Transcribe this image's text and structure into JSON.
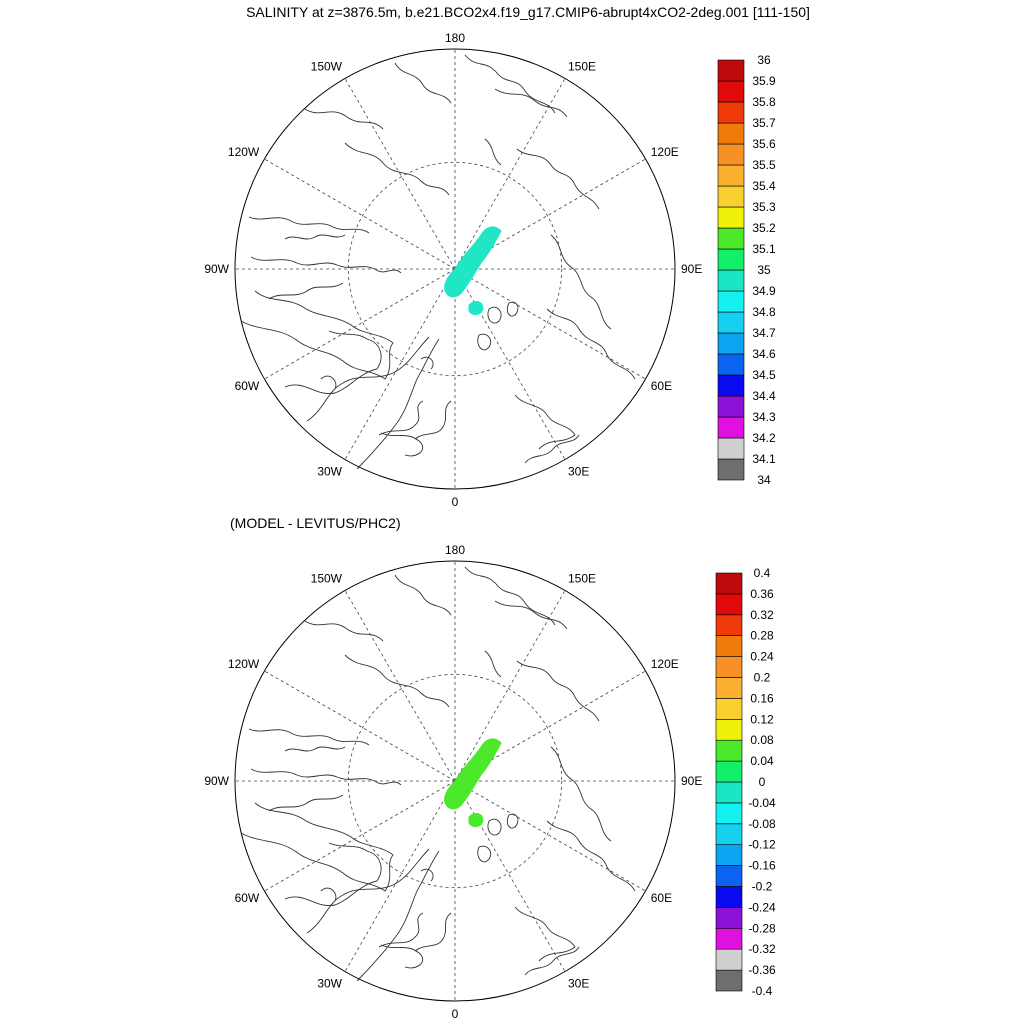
{
  "title": "SALINITY at z=3876.5m, b.e21.BCO2x4.f19_g17.CMIP6-abrupt4xCO2-2deg.001 [111-150]",
  "subtitle": "(MODEL - LEVITUS/PHC2)",
  "colors": {
    "land_outline": "#333333",
    "grid": "#444444",
    "salinity_patch": "#20e6c6",
    "difference_patch": "#4ce82a"
  },
  "maps": [
    {
      "longitude_labels": [
        "180",
        "150E",
        "120E",
        "90E",
        "60E",
        "30E",
        "0",
        "30W",
        "60W",
        "90W",
        "120W",
        "150W"
      ],
      "colorbar": {
        "colors": [
          "#6e6e6e",
          "#cfcfcf",
          "#e010e0",
          "#8c10d6",
          "#0a0af0",
          "#0a64f0",
          "#0aa4f0",
          "#16d0f0",
          "#12f0f0",
          "#1ae6c6",
          "#12f06a",
          "#4ce82a",
          "#f0f00a",
          "#f8d030",
          "#fbb030",
          "#f89028",
          "#f07a0a",
          "#f03a0a",
          "#e00a0a",
          "#be0a0a"
        ],
        "labels": [
          "34",
          "34.1",
          "34.2",
          "34.3",
          "34.4",
          "34.5",
          "34.6",
          "34.7",
          "34.8",
          "34.9",
          "35",
          "35.1",
          "35.2",
          "35.3",
          "35.4",
          "35.5",
          "35.6",
          "35.7",
          "35.8",
          "35.9",
          "36"
        ]
      }
    },
    {
      "longitude_labels": [
        "180",
        "150E",
        "120E",
        "90E",
        "60E",
        "30E",
        "0",
        "30W",
        "60W",
        "90W",
        "120W",
        "150W"
      ],
      "colorbar": {
        "colors": [
          "#6e6e6e",
          "#cfcfcf",
          "#e010e0",
          "#8c10d6",
          "#0a0af0",
          "#0a64f0",
          "#0aa4f0",
          "#16d0f0",
          "#12f0f0",
          "#1ae6c6",
          "#12f06a",
          "#4ce82a",
          "#f0f00a",
          "#f8d030",
          "#fbb030",
          "#f89028",
          "#f07a0a",
          "#f03a0a",
          "#e00a0a",
          "#be0a0a"
        ],
        "labels": [
          "-0.4",
          "-0.36",
          "-0.32",
          "-0.28",
          "-0.24",
          "-0.2",
          "-0.16",
          "-0.12",
          "-0.08",
          "-0.04",
          "0",
          "0.04",
          "0.08",
          "0.12",
          "0.16",
          "0.2",
          "0.24",
          "0.28",
          "0.32",
          "0.36",
          "0.4"
        ]
      }
    }
  ]
}
